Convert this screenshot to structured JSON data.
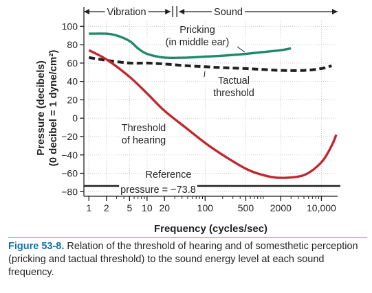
{
  "chart_data": {
    "type": "line",
    "xlabel": "Frequency (cycles/sec)",
    "ylabel": "Pressure (decibels)",
    "ylabel2": "(0 decibel = 1 dyne/cm²)",
    "x_scale": "log",
    "x_tick_labels": [
      "1",
      "2",
      "5",
      "10",
      "20",
      "100",
      "500",
      "2000",
      "10,000"
    ],
    "x_ticks": [
      1,
      2,
      5,
      10,
      20,
      100,
      500,
      2000,
      10000
    ],
    "ylim": [
      -85,
      107
    ],
    "y_ticks": [
      100,
      80,
      60,
      40,
      20,
      0,
      -20,
      -40,
      -60,
      -80
    ],
    "y_tick_labels": [
      "100",
      "80",
      "60",
      "40",
      "20",
      "0",
      "−20",
      "−40",
      "−60",
      "−80"
    ],
    "grid": true,
    "top_bar": {
      "left_label": "Vibration",
      "right_label": "Sound",
      "split_x": 30
    },
    "series": [
      {
        "name": "Pricking (in middle ear)",
        "color": "#1e8a6b",
        "style": "solid",
        "x": [
          1,
          2,
          3,
          5,
          7,
          10,
          20,
          50,
          100,
          200,
          500,
          1000,
          2000,
          3000
        ],
        "y": [
          92,
          92,
          90,
          84,
          76,
          70,
          66,
          66,
          67,
          68,
          70,
          72,
          74,
          76
        ]
      },
      {
        "name": "Tactual threshold",
        "color": "#231f20",
        "style": "dashed",
        "x": [
          1,
          2,
          5,
          10,
          20,
          50,
          100,
          200,
          500,
          1000,
          2000,
          5000,
          10000,
          15000
        ],
        "y": [
          66,
          63,
          60,
          60,
          59,
          57,
          56,
          55,
          54,
          53,
          52,
          52,
          54,
          57
        ]
      },
      {
        "name": "Threshold of hearing",
        "color": "#c1272d",
        "style": "solid",
        "x": [
          1,
          2,
          5,
          10,
          20,
          50,
          100,
          200,
          500,
          1000,
          2000,
          5000,
          10000,
          15000,
          18000
        ],
        "y": [
          74,
          64,
          45,
          27,
          8,
          -12,
          -27,
          -40,
          -55,
          -62,
          -65,
          -62,
          -48,
          -30,
          -18
        ]
      },
      {
        "name": "Reference pressure = −73.8",
        "color": "#231f20",
        "style": "solid",
        "x": [
          0.8,
          20000
        ],
        "y": [
          -73.8,
          -73.8
        ]
      }
    ],
    "annotations": [
      {
        "id": "pricking",
        "lines": [
          "Pricking",
          "(in middle ear)"
        ]
      },
      {
        "id": "tactual",
        "lines": [
          "Tactual",
          "threshold"
        ]
      },
      {
        "id": "hearing",
        "lines": [
          "Threshold",
          "of hearing"
        ]
      },
      {
        "id": "reference",
        "lines": [
          "Reference",
          "pressure = −73.8"
        ]
      }
    ]
  },
  "caption": {
    "number": "Figure 53-8.",
    "text": "Relation of the threshold of hearing and of somesthetic perception (pricking and tactual threshold) to the sound energy level at each sound frequency."
  }
}
